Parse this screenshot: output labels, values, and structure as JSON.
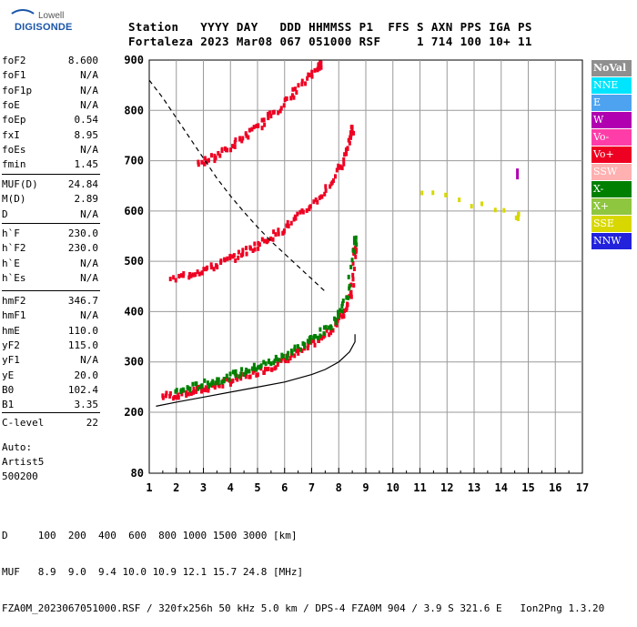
{
  "logo": {
    "line1": "Lowell",
    "line2": "DIGISONDE"
  },
  "header": {
    "row1": "Station   YYYY DAY   DDD HHMMSS P1  FFS S AXN PPS IGA PS",
    "row2": "Fortaleza 2023 Mar08 067 051000 RSF     1 714 100 10+ 11"
  },
  "params": {
    "g1": [
      {
        "k": "foF2",
        "v": "8.600"
      },
      {
        "k": "foF1",
        "v": "N/A"
      },
      {
        "k": "foF1p",
        "v": "N/A"
      },
      {
        "k": "foE",
        "v": "N/A"
      },
      {
        "k": "foEp",
        "v": "0.54"
      },
      {
        "k": "fxI",
        "v": "8.95"
      },
      {
        "k": "foEs",
        "v": "N/A"
      },
      {
        "k": "fmin",
        "v": "1.45"
      }
    ],
    "g2": [
      {
        "k": "MUF(D)",
        "v": "24.84"
      },
      {
        "k": "M(D)",
        "v": "2.89"
      },
      {
        "k": "D",
        "v": "N/A"
      }
    ],
    "g3": [
      {
        "k": "h`F",
        "v": "230.0"
      },
      {
        "k": "h`F2",
        "v": "230.0"
      },
      {
        "k": "h`E",
        "v": "N/A"
      },
      {
        "k": "h`Es",
        "v": "N/A"
      }
    ],
    "g4": [
      {
        "k": "hmF2",
        "v": "346.7"
      },
      {
        "k": "hmF1",
        "v": "N/A"
      },
      {
        "k": "hmE",
        "v": "110.0"
      },
      {
        "k": "yF2",
        "v": "115.0"
      },
      {
        "k": "yF1",
        "v": "N/A"
      },
      {
        "k": "yE",
        "v": "20.0"
      },
      {
        "k": "B0",
        "v": "102.4"
      },
      {
        "k": "B1",
        "v": "3.35"
      }
    ],
    "g5": [
      {
        "k": "C-level",
        "v": "22"
      }
    ],
    "auto": [
      "Auto:",
      "Artist5",
      "500200"
    ]
  },
  "legend": [
    {
      "label": "NoVal",
      "color": "#8f8f8f"
    },
    {
      "label": "NNE",
      "color": "#00e5ff"
    },
    {
      "label": "E",
      "color": "#4ea3f0"
    },
    {
      "label": "W",
      "color": "#b000b0"
    },
    {
      "label": "Vo-",
      "color": "#ff3da8"
    },
    {
      "label": "Vo+",
      "color": "#ee0022"
    },
    {
      "label": "SSW",
      "color": "#ffb0b0"
    },
    {
      "label": "X-",
      "color": "#008000"
    },
    {
      "label": "X+",
      "color": "#8ec63f"
    },
    {
      "label": "SSE",
      "color": "#d8d800"
    },
    {
      "label": "NNW",
      "color": "#2222dd"
    }
  ],
  "footer": {
    "line1": "D     100  200  400  600  800 1000 1500 3000 [km]",
    "line2": "MUF   8.9  9.0  9.4 10.0 10.9 12.1 15.7 24.8 [MHz]",
    "line3": "FZA0M_2023067051000.RSF / 320fx256h 50 kHz 5.0 km / DPS-4 FZA0M 904 / 3.9 S 321.6 E   Ion2Png 1.3.20"
  },
  "chart_data": {
    "type": "scatter",
    "xlim": [
      1,
      17
    ],
    "ylim": [
      80,
      900
    ],
    "xticks": [
      1,
      2,
      3,
      4,
      5,
      6,
      7,
      8,
      9,
      10,
      11,
      12,
      13,
      14,
      15,
      16,
      17
    ],
    "yticks": [
      80,
      200,
      300,
      400,
      500,
      600,
      700,
      800,
      900
    ],
    "x_tick_labels": [
      "1",
      "2",
      "3",
      "4",
      "5",
      "6",
      "7",
      "8",
      "9",
      "10",
      "11",
      "12",
      "13",
      "14",
      "15",
      "16",
      "17"
    ],
    "y_tick_labels": [
      "80",
      "200",
      "300",
      "400",
      "500",
      "600",
      "700",
      "800",
      "900"
    ],
    "grid": true,
    "traces": [
      {
        "name": "Vo+",
        "color": "#ee0022",
        "x": [
          1.5,
          2.0,
          2.5,
          3.0,
          3.5,
          4.0,
          4.5,
          5.0,
          5.5,
          6.0,
          6.5,
          7.0,
          7.5,
          8.0,
          8.3,
          8.5,
          8.6
        ],
        "y": [
          232,
          234,
          240,
          246,
          254,
          262,
          270,
          280,
          290,
          302,
          318,
          335,
          352,
          380,
          410,
          450,
          520
        ]
      },
      {
        "name": "X-",
        "color": "#008000",
        "x": [
          2.0,
          2.5,
          3.0,
          3.5,
          4.0,
          4.5,
          5.0,
          5.5,
          6.0,
          6.5,
          7.0,
          7.5,
          8.0,
          8.3,
          8.6
        ],
        "y": [
          240,
          248,
          255,
          263,
          272,
          280,
          290,
          300,
          312,
          328,
          345,
          362,
          392,
          430,
          540
        ]
      },
      {
        "name": "Vo+",
        "color": "#ee0022",
        "x": [
          1.8,
          2.5,
          3.0,
          3.5,
          4.0,
          4.5,
          5.0,
          5.5,
          6.0,
          6.5,
          7.0,
          7.5,
          8.0,
          8.3,
          8.5
        ],
        "y": [
          462,
          475,
          482,
          492,
          505,
          518,
          532,
          548,
          566,
          588,
          612,
          640,
          680,
          720,
          760
        ]
      },
      {
        "name": "Vo+",
        "color": "#ee0022",
        "x": [
          2.8,
          3.3,
          3.8,
          4.3,
          4.8,
          5.3,
          5.8,
          6.3,
          6.8,
          7.3
        ],
        "y": [
          690,
          705,
          720,
          738,
          758,
          780,
          805,
          832,
          860,
          890
        ]
      },
      {
        "name": "SSE",
        "color": "#d8d800",
        "x": [
          11.1,
          14.6
        ],
        "y": [
          640,
          590
        ]
      },
      {
        "name": "W",
        "color": "#b000b0",
        "x": [
          14.6
        ],
        "y": [
          680
        ]
      }
    ],
    "curves": [
      {
        "style": "solid",
        "color": "#000000",
        "x": [
          1.25,
          2.0,
          3.0,
          4.0,
          5.0,
          6.0,
          7.0,
          7.5,
          8.0,
          8.4,
          8.6,
          8.6
        ],
        "y": [
          212,
          220,
          230,
          240,
          250,
          260,
          275,
          285,
          300,
          320,
          340,
          355
        ]
      },
      {
        "style": "dashed",
        "color": "#000000",
        "x": [
          1.0,
          1.5,
          2.0,
          2.5,
          3.0,
          3.5,
          4.0,
          4.5,
          5.0,
          5.5,
          6.0,
          6.5,
          7.0,
          7.5
        ],
        "y": [
          860,
          825,
          785,
          745,
          705,
          665,
          630,
          598,
          568,
          540,
          515,
          490,
          465,
          440
        ]
      }
    ]
  }
}
